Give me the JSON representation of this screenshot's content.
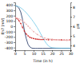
{
  "chart_data": {
    "type": "line",
    "xlabel": "Time (in h)",
    "ylabel": "Eh7 (mV)",
    "y2label": "pH",
    "xlim": [
      0,
      30
    ],
    "xticks": [
      0,
      5,
      10,
      15,
      20,
      25,
      30
    ],
    "ylim": [
      -450,
      450
    ],
    "yticks": [
      -400,
      -300,
      -200,
      -100,
      0,
      100,
      200,
      300,
      400
    ],
    "y2lim": [
      3.5,
      8.5
    ],
    "y2ticks": [
      4,
      5,
      6,
      7,
      8
    ],
    "grid": false,
    "series": [
      {
        "color": "#1a2f5e",
        "line_style": "solid",
        "x": [
          0,
          1,
          2,
          3,
          4,
          5,
          6,
          7,
          8,
          9,
          10,
          11,
          12,
          15,
          20,
          25,
          30
        ],
        "values": [
          390,
          375,
          345,
          270,
          130,
          -80,
          -230,
          -340,
          -390,
          -410,
          -415,
          -415,
          -415,
          -415,
          -415,
          -415,
          -415
        ]
      },
      {
        "color": "#70c8e8",
        "line_style": "solid",
        "x": [
          0,
          1,
          2,
          3,
          4,
          5,
          6,
          7,
          8,
          9,
          10,
          11,
          12,
          13,
          14,
          15,
          16,
          17,
          18,
          19,
          20,
          22,
          25,
          30
        ],
        "values": [
          390,
          382,
          368,
          348,
          322,
          290,
          255,
          215,
          172,
          128,
          80,
          30,
          -25,
          -85,
          -150,
          -215,
          -275,
          -325,
          -365,
          -390,
          -402,
          -408,
          -410,
          -410
        ]
      },
      {
        "color": "#cc2222",
        "line_style": "dashed",
        "marker": "square",
        "axis": "y2",
        "x": [
          0,
          1,
          2,
          3,
          4,
          5,
          6,
          7,
          8,
          9,
          10,
          11,
          12,
          13,
          14,
          15,
          18,
          20,
          25,
          30
        ],
        "values": [
          6.9,
          6.8,
          6.6,
          6.3,
          5.9,
          5.5,
          5.2,
          5.0,
          4.85,
          4.78,
          4.72,
          4.68,
          4.65,
          4.63,
          4.62,
          4.62,
          4.6,
          4.6,
          4.58,
          4.58
        ]
      },
      {
        "color": "#e8aaaa",
        "line_style": "dashed",
        "marker": "square",
        "axis": "y2",
        "x": [
          0,
          1,
          2,
          3,
          4,
          5,
          6,
          7,
          8,
          10,
          12,
          14,
          16,
          18,
          20,
          22,
          24,
          26,
          28,
          30
        ],
        "values": [
          6.9,
          6.85,
          6.78,
          6.68,
          6.55,
          6.4,
          6.22,
          6.02,
          5.82,
          5.45,
          5.15,
          4.92,
          4.78,
          4.7,
          4.65,
          4.6,
          4.58,
          4.55,
          4.53,
          4.52
        ]
      }
    ]
  }
}
